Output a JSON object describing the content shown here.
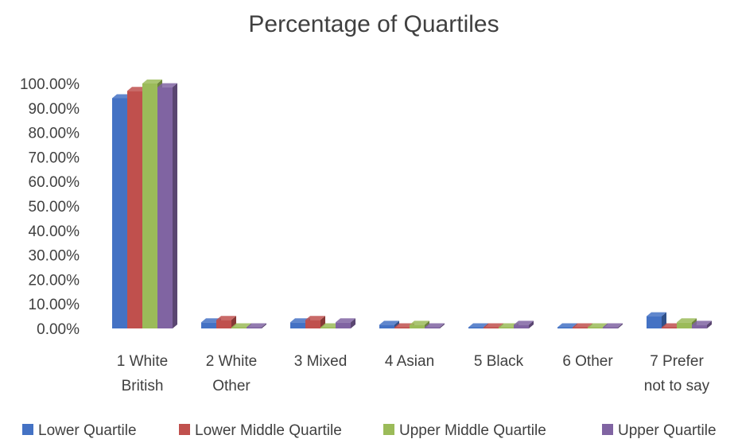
{
  "chart_data": {
    "type": "bar",
    "title": "Percentage of Quartiles",
    "xlabel": "",
    "ylabel": "",
    "ylim": [
      0,
      1
    ],
    "yticks": [
      "0.00%",
      "10.00%",
      "20.00%",
      "30.00%",
      "40.00%",
      "50.00%",
      "60.00%",
      "70.00%",
      "80.00%",
      "90.00%",
      "100.00%"
    ],
    "categories": [
      [
        "1 White",
        "British"
      ],
      [
        "2 White",
        "Other"
      ],
      [
        "3 Mixed"
      ],
      [
        "4 Asian"
      ],
      [
        "5 Black"
      ],
      [
        "6 Other"
      ],
      [
        "7 Prefer",
        "not to say"
      ]
    ],
    "series": [
      {
        "name": "Lower Quartile",
        "color": "#4472C4",
        "values": [
          0.94,
          0.025,
          0.025,
          0.015,
          0.005,
          0.005,
          0.05
        ]
      },
      {
        "name": "Lower Middle Quartile",
        "color": "#C0504D",
        "values": [
          0.97,
          0.035,
          0.035,
          0.005,
          0.005,
          0.005,
          0.005
        ]
      },
      {
        "name": "Upper Middle Quartile",
        "color": "#9BBB59",
        "values": [
          1.0,
          0.005,
          0.005,
          0.015,
          0.005,
          0.005,
          0.025
        ]
      },
      {
        "name": "Upper Quartile",
        "color": "#8064A2",
        "values": [
          0.985,
          0.005,
          0.025,
          0.005,
          0.015,
          0.005,
          0.015
        ]
      }
    ],
    "grid": false,
    "legend_position": "bottom"
  }
}
